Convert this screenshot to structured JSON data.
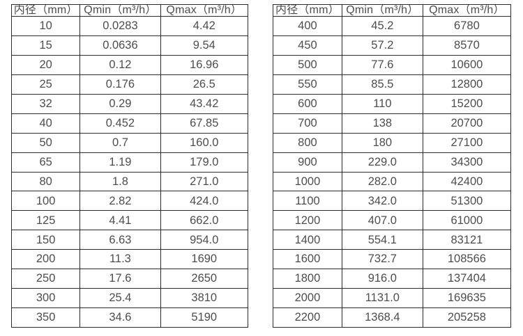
{
  "colors": {
    "background": "#ffffff",
    "border": "#2b2b2b",
    "text": "#4d4d4d"
  },
  "tables": [
    {
      "name": "flow-spec-table-small-diameters",
      "headers": [
        "内径（mm）",
        "Qmin（m³/h）",
        "Qmax（m³/h）"
      ],
      "rows": [
        [
          "10",
          "0.0283",
          "4.42"
        ],
        [
          "15",
          "0.0636",
          "9.54"
        ],
        [
          "20",
          "0.12",
          "16.96"
        ],
        [
          "25",
          "0.176",
          "26.5"
        ],
        [
          "32",
          "0.29",
          "43.42"
        ],
        [
          "40",
          "0.452",
          "67.85"
        ],
        [
          "50",
          "0.7",
          "160.0"
        ],
        [
          "65",
          "1.19",
          "179.0"
        ],
        [
          "80",
          "1.8",
          "271.0"
        ],
        [
          "100",
          "2.82",
          "424.0"
        ],
        [
          "125",
          "4.41",
          "662.0"
        ],
        [
          "150",
          "6.63",
          "954.0"
        ],
        [
          "200",
          "11.3",
          "1690"
        ],
        [
          "250",
          "17.6",
          "2650"
        ],
        [
          "300",
          "25.4",
          "3810"
        ],
        [
          "350",
          "34.6",
          "5190"
        ]
      ]
    },
    {
      "name": "flow-spec-table-large-diameters",
      "headers": [
        "内径（mm）",
        "Qmin（m³/h）",
        "Qmax（m³/h）"
      ],
      "rows": [
        [
          "400",
          "45.2",
          "6780"
        ],
        [
          "450",
          "57.2",
          "8570"
        ],
        [
          "500",
          "77.6",
          "10600"
        ],
        [
          "550",
          "85.5",
          "12800"
        ],
        [
          "600",
          "110",
          "15200"
        ],
        [
          "700",
          "138",
          "20700"
        ],
        [
          "800",
          "180",
          "27100"
        ],
        [
          "900",
          "229.0",
          "34300"
        ],
        [
          "1000",
          "282.0",
          "42400"
        ],
        [
          "1100",
          "342.0",
          "51300"
        ],
        [
          "1200",
          "407.0",
          "61000"
        ],
        [
          "1400",
          "554.1",
          "83121"
        ],
        [
          "1600",
          "732.7",
          "108566"
        ],
        [
          "1800",
          "916.0",
          "137404"
        ],
        [
          "2000",
          "1131.0",
          "169635"
        ],
        [
          "2200",
          "1368.4",
          "205258"
        ]
      ]
    }
  ]
}
